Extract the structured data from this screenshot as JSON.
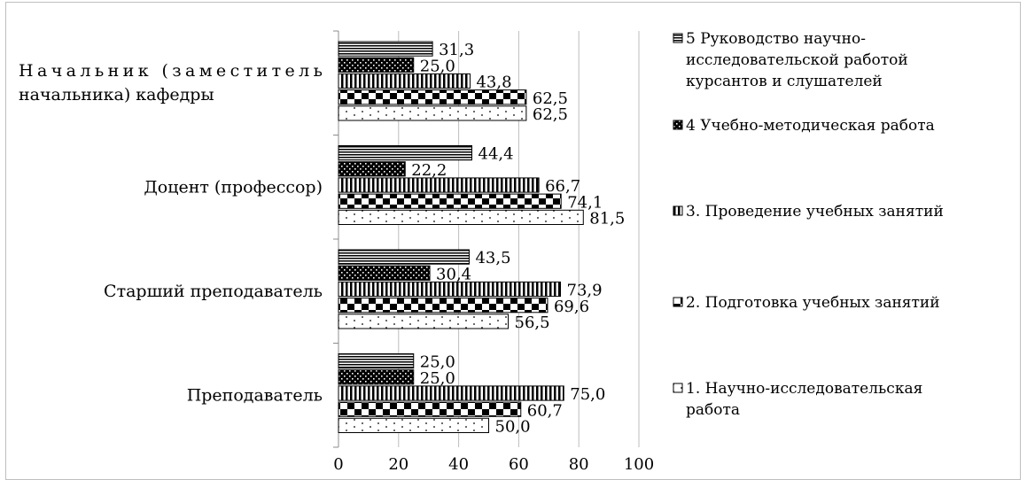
{
  "chart_data": {
    "type": "bar",
    "orientation": "horizontal",
    "categories": [
      [
        "Начальник (заместитель",
        "начальника) кафедры"
      ],
      [
        "Доцент (профессор)"
      ],
      [
        "Старший преподаватель"
      ],
      [
        "Преподаватель"
      ]
    ],
    "series": [
      {
        "name": "5 Руководство научно-исследовательской работой курсантов и слушателей",
        "legend_lines": [
          "5 Руководство научно-",
          "исследовательской работой",
          "курсантов и слушателей"
        ],
        "pattern": "hstripes",
        "values": [
          31.3,
          44.4,
          43.5,
          25.0
        ],
        "labels": [
          "31,3",
          "44,4",
          "43,5",
          "25,0"
        ]
      },
      {
        "name": "4 Учебно-методическая работа",
        "legend_lines": [
          "4  Учебно-методическая работа"
        ],
        "pattern": "dots",
        "values": [
          25.0,
          22.2,
          30.4,
          25.0
        ],
        "labels": [
          "25,0",
          "22,2",
          "30,4",
          "25,0"
        ]
      },
      {
        "name": "3. Проведение учебных занятий",
        "legend_lines": [
          "3. Проведение учебных занятий"
        ],
        "pattern": "vstripes",
        "values": [
          43.8,
          66.7,
          73.9,
          75.0
        ],
        "labels": [
          "43,8",
          "66,7",
          "73,9",
          "75,0"
        ]
      },
      {
        "name": "2. Подготовка учебных занятий",
        "legend_lines": [
          "2. Подготовка учебных занятий"
        ],
        "pattern": "checker",
        "values": [
          62.5,
          74.1,
          69.6,
          60.7
        ],
        "labels": [
          "62,5",
          "74,1",
          "69,6",
          "60,7"
        ]
      },
      {
        "name": "1. Научно-исследовательская работа",
        "legend_lines": [
          "1. Научно-исследовательская",
          "работа"
        ],
        "pattern": "sparse",
        "values": [
          62.5,
          81.5,
          56.5,
          50.0
        ],
        "labels": [
          "62,5",
          "81,5",
          "56,5",
          "50,0"
        ]
      }
    ],
    "xlim": [
      0,
      100
    ],
    "xticks": [
      0,
      20,
      40,
      60,
      80,
      100
    ],
    "xtick_labels": [
      "0",
      "20",
      "40",
      "60",
      "80",
      "100"
    ],
    "grid": "vertical",
    "legend_position": "right",
    "title": "",
    "xlabel": "",
    "ylabel": ""
  }
}
